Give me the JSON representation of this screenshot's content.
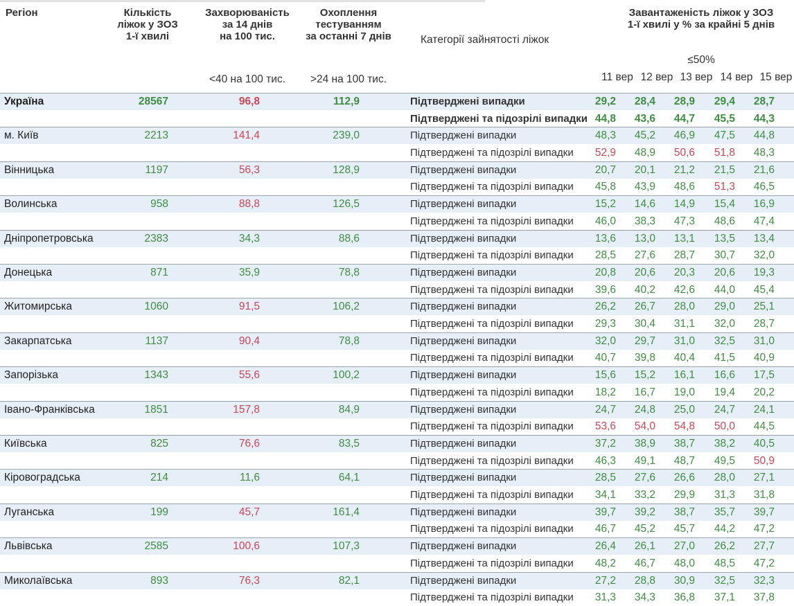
{
  "header": {
    "region": "Регіон",
    "beds": [
      "Кількість",
      "ліжок у ЗОЗ",
      "1-ї хвилі"
    ],
    "incidence": [
      "Захворюваність",
      "за 14 днів",
      "на 100 тис."
    ],
    "testing": [
      "Охоплення",
      "тестуванням",
      "за останні 7 днів"
    ],
    "category": "Категорії зайнятості ліжок",
    "occupancy": [
      "Завантаженість ліжок у ЗОЗ",
      "1-ї хвилі у % за крайні 5 днів"
    ],
    "incidence_threshold": "<40 на 100 тис.",
    "testing_threshold": ">24 на 100 тис.",
    "occupancy_threshold": "≤50%",
    "days": [
      "11 вер",
      "12 вер",
      "13 вер",
      "14 вер",
      "15 вер"
    ]
  },
  "categories": [
    "Підтверджені випадки",
    "Підтверджені та підозрілі випадки"
  ],
  "colors": {
    "good": "#3e8e41",
    "bad": "#cf4553"
  },
  "rows": [
    {
      "region": "Україна",
      "bold": true,
      "beds": "28567",
      "incidence": "96,8",
      "incidence_color": "bad",
      "testing": "112,9",
      "confirmed": [
        "29,2",
        "28,4",
        "28,9",
        "29,4",
        "28,7"
      ],
      "suspected": [
        "44,8",
        "43,6",
        "44,7",
        "45,5",
        "44,3"
      ]
    },
    {
      "region": "м. Київ",
      "beds": "2213",
      "incidence": "141,4",
      "incidence_color": "bad",
      "testing": "239,0",
      "confirmed": [
        "48,3",
        "45,2",
        "46,9",
        "47,5",
        "44,8"
      ],
      "suspected": [
        "52,9",
        "48,9",
        "50,6",
        "51,8",
        "48,3"
      ],
      "suspected_colors": [
        "bad",
        "good",
        "bad",
        "bad",
        "good"
      ]
    },
    {
      "region": "Вінницька",
      "beds": "1197",
      "incidence": "56,3",
      "incidence_color": "bad",
      "testing": "128,9",
      "confirmed": [
        "20,7",
        "20,1",
        "21,2",
        "21,5",
        "21,6"
      ],
      "suspected": [
        "45,8",
        "43,9",
        "48,6",
        "51,3",
        "46,5"
      ],
      "suspected_colors": [
        "good",
        "good",
        "good",
        "bad",
        "good"
      ]
    },
    {
      "region": "Волинська",
      "beds": "958",
      "incidence": "88,8",
      "incidence_color": "bad",
      "testing": "126,5",
      "confirmed": [
        "15,2",
        "14,6",
        "14,9",
        "15,4",
        "16,9"
      ],
      "suspected": [
        "46,0",
        "38,3",
        "47,3",
        "48,6",
        "47,4"
      ]
    },
    {
      "region": "Дніпропетровська",
      "beds": "2383",
      "incidence": "34,3",
      "incidence_color": "good",
      "testing": "88,6",
      "confirmed": [
        "13,6",
        "13,0",
        "13,1",
        "13,5",
        "13,4"
      ],
      "suspected": [
        "28,5",
        "27,6",
        "28,7",
        "30,7",
        "32,0"
      ]
    },
    {
      "region": "Донецька",
      "beds": "871",
      "incidence": "35,9",
      "incidence_color": "good",
      "testing": "78,8",
      "confirmed": [
        "20,8",
        "20,6",
        "20,3",
        "20,6",
        "19,3"
      ],
      "suspected": [
        "39,6",
        "40,2",
        "42,6",
        "44,0",
        "45,4"
      ]
    },
    {
      "region": "Житомирська",
      "beds": "1060",
      "incidence": "91,5",
      "incidence_color": "bad",
      "testing": "106,2",
      "confirmed": [
        "26,2",
        "26,7",
        "28,0",
        "29,0",
        "25,1"
      ],
      "suspected": [
        "29,3",
        "30,4",
        "31,1",
        "32,0",
        "28,7"
      ]
    },
    {
      "region": "Закарпатська",
      "beds": "1137",
      "incidence": "90,4",
      "incidence_color": "bad",
      "testing": "78,8",
      "confirmed": [
        "32,0",
        "29,7",
        "31,0",
        "32,5",
        "31,0"
      ],
      "suspected": [
        "40,7",
        "39,8",
        "40,4",
        "41,5",
        "40,9"
      ]
    },
    {
      "region": "Запорізька",
      "beds": "1343",
      "incidence": "55,6",
      "incidence_color": "bad",
      "testing": "100,2",
      "confirmed": [
        "15,6",
        "15,2",
        "16,1",
        "16,6",
        "17,5"
      ],
      "suspected": [
        "18,2",
        "16,7",
        "19,0",
        "19,4",
        "20,2"
      ]
    },
    {
      "region": "Івано-Франківська",
      "beds": "1851",
      "incidence": "157,8",
      "incidence_color": "bad",
      "testing": "84,9",
      "confirmed": [
        "24,7",
        "24,8",
        "25,0",
        "24,7",
        "24,1"
      ],
      "suspected": [
        "53,6",
        "54,0",
        "54,8",
        "50,0",
        "44,5"
      ],
      "suspected_colors": [
        "bad",
        "bad",
        "bad",
        "bad",
        "good"
      ]
    },
    {
      "region": "Київська",
      "beds": "825",
      "incidence": "76,6",
      "incidence_color": "bad",
      "testing": "83,5",
      "confirmed": [
        "37,2",
        "38,9",
        "38,7",
        "38,2",
        "40,5"
      ],
      "suspected": [
        "46,3",
        "49,1",
        "48,7",
        "49,5",
        "50,9"
      ],
      "suspected_colors": [
        "good",
        "good",
        "good",
        "good",
        "bad"
      ]
    },
    {
      "region": "Кіровоградська",
      "beds": "214",
      "incidence": "11,6",
      "incidence_color": "good",
      "testing": "64,1",
      "confirmed": [
        "28,5",
        "27,6",
        "26,6",
        "28,0",
        "27,1"
      ],
      "suspected": [
        "34,1",
        "33,2",
        "29,9",
        "31,3",
        "31,8"
      ]
    },
    {
      "region": "Луганська",
      "beds": "199",
      "incidence": "45,7",
      "incidence_color": "bad",
      "testing": "161,4",
      "confirmed": [
        "39,7",
        "39,2",
        "38,7",
        "35,7",
        "39,7"
      ],
      "suspected": [
        "46,7",
        "45,2",
        "45,7",
        "44,2",
        "47,2"
      ]
    },
    {
      "region": "Львівська",
      "beds": "2585",
      "incidence": "100,6",
      "incidence_color": "bad",
      "testing": "107,3",
      "confirmed": [
        "26,4",
        "26,1",
        "27,0",
        "26,2",
        "27,7"
      ],
      "suspected": [
        "48,2",
        "46,7",
        "48,0",
        "48,5",
        "47,2"
      ]
    },
    {
      "region": "Миколаївська",
      "beds": "893",
      "incidence": "76,3",
      "incidence_color": "bad",
      "testing": "82,1",
      "confirmed": [
        "27,2",
        "28,8",
        "30,9",
        "32,5",
        "32,3"
      ],
      "suspected": [
        "31,3",
        "34,3",
        "36,8",
        "37,1",
        "37,8"
      ]
    }
  ]
}
